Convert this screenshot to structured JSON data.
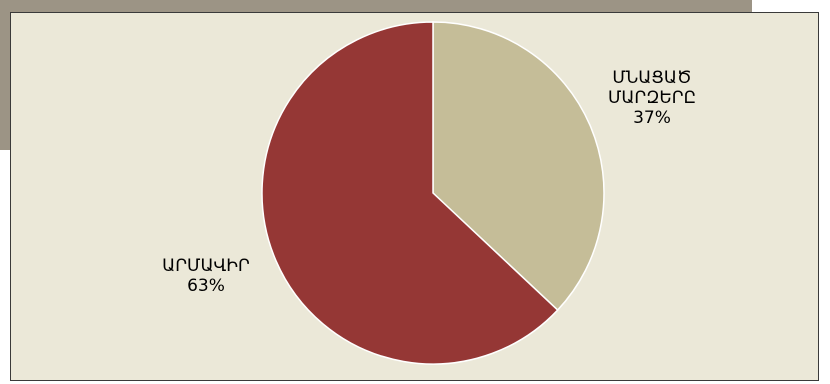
{
  "colors": {
    "banner": "#9c9485",
    "plot_background": "#ebe8d8",
    "slice_others": "#c5bd98",
    "slice_armavir": "#953735",
    "slice_border": "#ffffff"
  },
  "chart_data": {
    "type": "pie",
    "slices": [
      {
        "label_lines": [
          "ՄՆԱՑԱԾ",
          "ՄԱՐԶԵՐԸ"
        ],
        "value": 37,
        "value_label": "37%"
      },
      {
        "label_lines": [
          "ԱՐՄԱՎԻՐ"
        ],
        "value": 63,
        "value_label": "63%"
      }
    ],
    "start": "12 o'clock",
    "direction": "clockwise",
    "legend": "none"
  }
}
